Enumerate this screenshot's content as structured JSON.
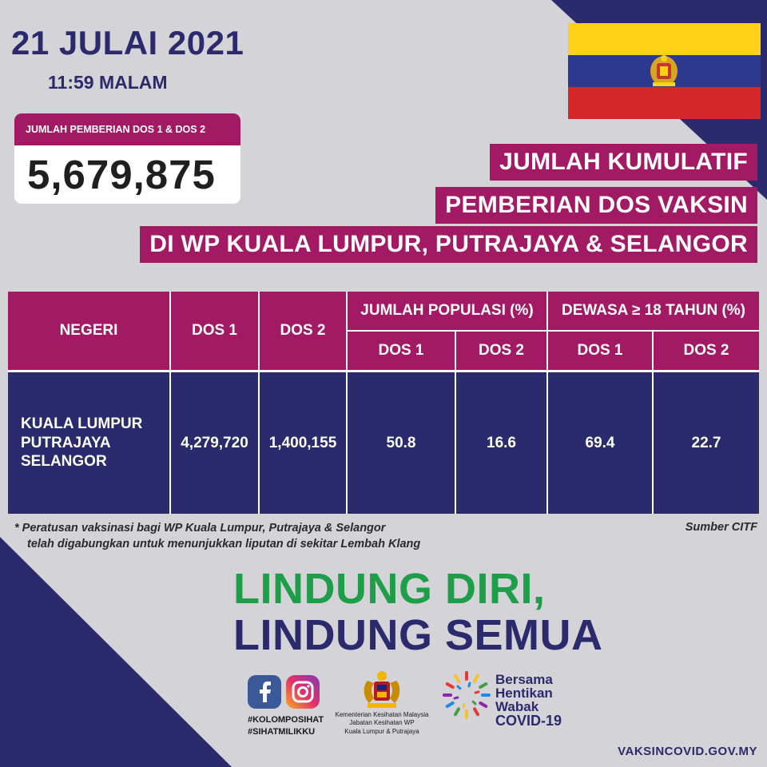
{
  "header": {
    "date": "21 JULAI 2021",
    "time": "11:59 MALAM"
  },
  "total": {
    "label": "JUMLAH PEMBERIAN DOS 1 & DOS 2",
    "value": "5,679,875"
  },
  "title": {
    "line1": "JUMLAH KUMULATIF",
    "line2": "PEMBERIAN DOS VAKSIN",
    "line3": "DI WP KUALA LUMPUR, PUTRAJAYA & SELANGOR"
  },
  "table": {
    "headers": {
      "negeri": "NEGERI",
      "dos1": "DOS 1",
      "dos2": "DOS 2",
      "population": "JUMLAH POPULASI (%)",
      "adult": "DEWASA ≥ 18 TAHUN (%)",
      "pop_dos1": "DOS 1",
      "pop_dos2": "DOS 2",
      "adult_dos1": "DOS 1",
      "adult_dos2": "DOS 2"
    },
    "row": {
      "region_line1": "KUALA LUMPUR",
      "region_line2": "PUTRAJAYA",
      "region_line3": "SELANGOR",
      "dos1": "4,279,720",
      "dos2": "1,400,155",
      "pop_dos1": "50.8",
      "pop_dos2": "16.6",
      "adult_dos1": "69.4",
      "adult_dos2": "22.7"
    }
  },
  "footnote": {
    "line1": "* Peratusan vaksinasi bagi WP Kuala Lumpur, Putrajaya & Selangor",
    "line2": "telah digabungkan untuk menunjukkan liputan di sekitar Lembah Klang",
    "source": "Sumber CITF"
  },
  "slogan": {
    "line1": "LINDUNG DIRI,",
    "line2": "LINDUNG SEMUA"
  },
  "footer": {
    "hashtag1": "#KOLOMPOSIHAT",
    "hashtag2": "#SIHATMILIKKU",
    "ministry_line1": "Kementerian Kesihatan Malaysia",
    "ministry_line2": "Jabatan Kesihatan WP",
    "ministry_line3": "Kuala Lumpur & Putrajaya",
    "covid_line1": "Bersama",
    "covid_line2": "Hentikan",
    "covid_line3": "Wabak",
    "covid_line4": "COVID-19",
    "url": "VAKSINCOVID.GOV.MY"
  },
  "icons": {
    "facebook": "facebook-icon",
    "instagram": "instagram-icon",
    "coat_of_arms": "coat-of-arms-icon",
    "covid_logo": "covid-campaign-logo"
  },
  "colors": {
    "navy": "#2b2a6c",
    "magenta": "#a31a64",
    "green": "#1f9e49",
    "background": "#d3d3d8",
    "flag_yellow": "#fcd116",
    "flag_blue": "#2b3a8f",
    "flag_red": "#d62828"
  }
}
